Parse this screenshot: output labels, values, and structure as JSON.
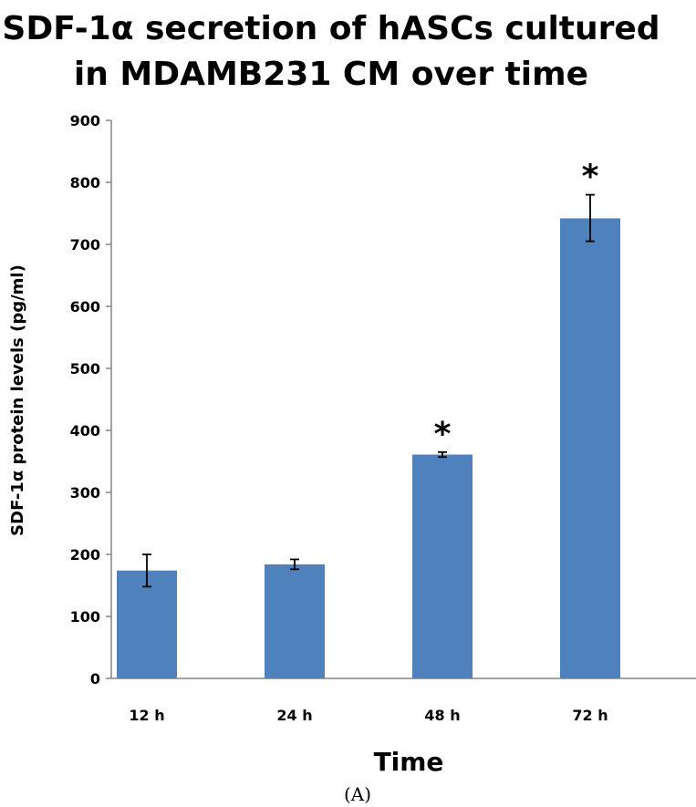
{
  "chart_data": {
    "type": "bar",
    "title_lines": [
      "SDF-1α secretion of hASCs cultured",
      "in MDAMB231 CM over time"
    ],
    "xlabel": "Time",
    "ylabel": "SDF-1α protein levels (pg/ml)",
    "categories": [
      "12 h",
      "24 h",
      "48 h",
      "72 h"
    ],
    "values": [
      174,
      184,
      361,
      742
    ],
    "error_low": [
      148,
      176,
      357,
      705
    ],
    "error_high": [
      200,
      192,
      365,
      780
    ],
    "significance": [
      "",
      "",
      "*",
      "*"
    ],
    "ylim": [
      0,
      900
    ],
    "yticks": [
      0,
      100,
      200,
      300,
      400,
      500,
      600,
      700,
      800,
      900
    ],
    "grid": false,
    "legend": "none",
    "bar_color": "#4f81bd",
    "caption": "(A)"
  }
}
